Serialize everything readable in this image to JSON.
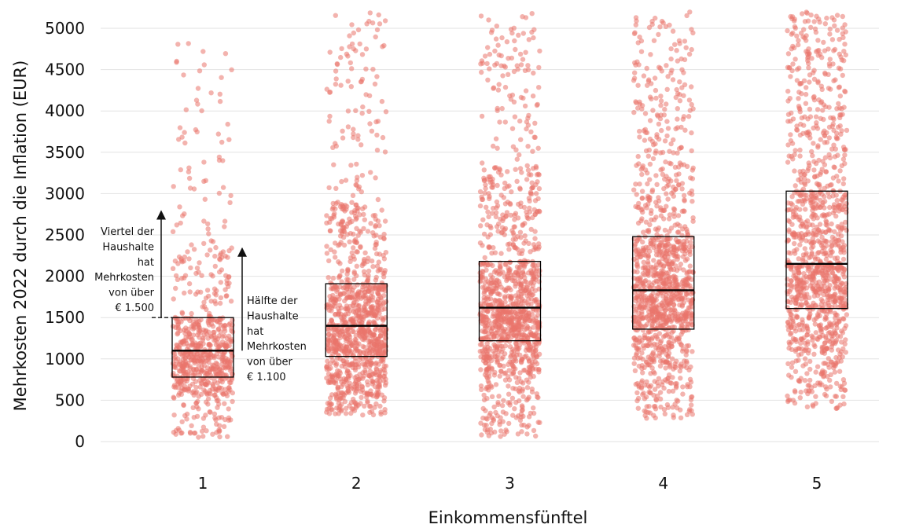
{
  "chart_data": {
    "type": "scatter",
    "xlabel": "Einkommensfünftel",
    "ylabel": "Mehrkosten 2022 durch die Inflation (EUR)",
    "categories": [
      "1",
      "2",
      "3",
      "4",
      "5"
    ],
    "ylim": [
      0,
      5200
    ],
    "yticks": [
      0,
      500,
      1000,
      1500,
      2000,
      2500,
      3000,
      3500,
      4000,
      4500,
      5000
    ],
    "grid": true,
    "point_color": "#e9756c",
    "box_color": "#000000",
    "boxes": [
      {
        "category": "1",
        "q1": 780,
        "median": 1100,
        "q3": 1500
      },
      {
        "category": "2",
        "q1": 1030,
        "median": 1400,
        "q3": 1910
      },
      {
        "category": "3",
        "q1": 1220,
        "median": 1620,
        "q3": 2180
      },
      {
        "category": "4",
        "q1": 1360,
        "median": 1830,
        "q3": 2480
      },
      {
        "category": "5",
        "q1": 1610,
        "median": 2150,
        "q3": 3030
      }
    ],
    "distributions": [
      {
        "category": "1",
        "min": 50,
        "p10": 560,
        "q1": 780,
        "median": 1100,
        "q3": 1500,
        "p90": 2350,
        "max": 4850,
        "n": 700
      },
      {
        "category": "2",
        "min": 320,
        "p10": 700,
        "q1": 1030,
        "median": 1400,
        "q3": 1910,
        "p90": 2900,
        "max": 5200,
        "n": 1100
      },
      {
        "category": "3",
        "min": 60,
        "p10": 820,
        "q1": 1220,
        "median": 1620,
        "q3": 2180,
        "p90": 3350,
        "max": 5200,
        "n": 1150
      },
      {
        "category": "4",
        "min": 280,
        "p10": 900,
        "q1": 1360,
        "median": 1830,
        "q3": 2480,
        "p90": 3700,
        "max": 5200,
        "n": 1150
      },
      {
        "category": "5",
        "min": 400,
        "p10": 1050,
        "q1": 1610,
        "median": 2150,
        "q3": 3030,
        "p90": 4300,
        "max": 5200,
        "n": 1150
      }
    ],
    "annotations": [
      {
        "id": "viertel",
        "category": "1",
        "from": 1500,
        "to": 2800,
        "lines": [
          "Viertel der",
          "Haushalte",
          "hat",
          "Mehrkosten",
          "von über",
          "€ 1.500"
        ]
      },
      {
        "id": "haelfte",
        "category": "1",
        "from": 1100,
        "to": 2350,
        "lines": [
          "Hälfte der",
          "Haushalte",
          "hat",
          "Mehrkosten",
          "von über",
          "€ 1.100"
        ]
      }
    ]
  }
}
